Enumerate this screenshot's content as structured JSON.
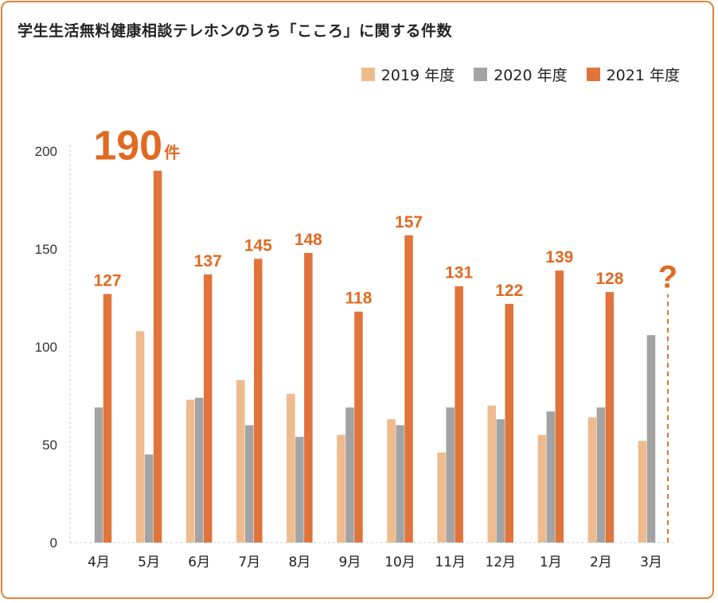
{
  "chart_data": {
    "type": "bar",
    "title": "学生生活無料健康相談テレホンのうち「こころ」に関する件数",
    "categories": [
      "4月",
      "5月",
      "6月",
      "7月",
      "8月",
      "9月",
      "10月",
      "11月",
      "12月",
      "1月",
      "2月",
      "3月"
    ],
    "series": [
      {
        "name": "2019 年度",
        "color": "#EEBB8E",
        "values": [
          null,
          108,
          73,
          83,
          76,
          55,
          63,
          46,
          70,
          55,
          64,
          52
        ]
      },
      {
        "name": "2020 年度",
        "color": "#A3A3A3",
        "values": [
          69,
          45,
          74,
          60,
          54,
          69,
          60,
          69,
          63,
          67,
          69,
          106
        ]
      },
      {
        "name": "2021 年度",
        "color": "#E0743A",
        "values": [
          127,
          190,
          137,
          145,
          148,
          118,
          157,
          131,
          122,
          139,
          128,
          null
        ]
      }
    ],
    "data_labels": [
      "127",
      "190",
      "137",
      "145",
      "148",
      "118",
      "157",
      "131",
      "122",
      "139",
      "128",
      "?"
    ],
    "highlight_unit": "件",
    "ylim": [
      0,
      200
    ],
    "yticks": [
      0,
      50,
      100,
      150,
      200
    ],
    "grid": false,
    "legend": "top-right"
  }
}
